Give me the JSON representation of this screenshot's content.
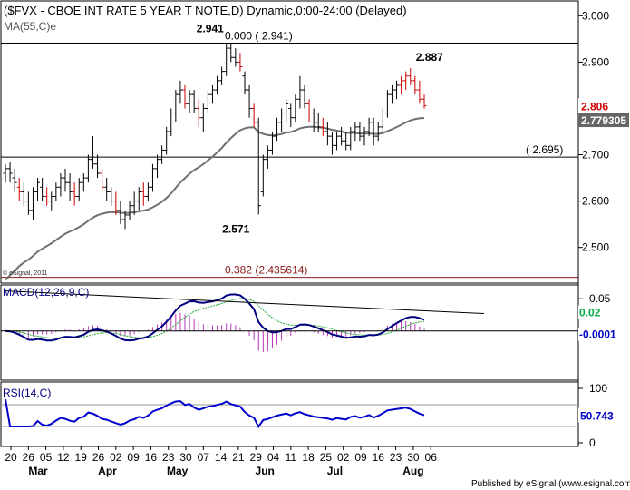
{
  "chart_data": [
    {
      "type": "ohlc",
      "title": "($FVX - CBOE INT RATE 5 YEAR T NOTE,D) Dynamic,0:00-24:00 (Delayed)",
      "indicator_label": "MA(55,C)e",
      "ylim": [
        2.425,
        3.03
      ],
      "y_ticks": [
        2.5,
        2.6,
        2.7,
        2.8,
        2.9,
        3.0
      ],
      "y_tick_labels": [
        "2.500",
        "2.600",
        "2.700",
        "2.800",
        "2.900",
        "3.000"
      ],
      "last_price": {
        "label": "2.806",
        "value": 2.806,
        "color": "#cc0000"
      },
      "ma_value": {
        "label": "2.779305",
        "value": 2.779305,
        "color": "#666666"
      },
      "horizontal_levels": [
        {
          "value": 2.941,
          "label": "0.000 ( 2.941)",
          "color": "#000000"
        },
        {
          "value": 2.695,
          "label": "( 2.695)",
          "color": "#000000"
        },
        {
          "value": 2.435614,
          "label": "0.382 (2.435614)",
          "color": "#8b1a1a"
        }
      ],
      "annotations": [
        {
          "label": "2.941",
          "value": 2.941
        },
        {
          "label": "2.571",
          "value": 2.571
        },
        {
          "label": "2.887",
          "value": 2.887
        }
      ],
      "watermark": "© eSignal, 2011",
      "ohlc": [
        [
          2.66,
          2.68,
          2.64,
          2.67
        ],
        [
          2.67,
          2.685,
          2.64,
          2.66
        ],
        [
          2.65,
          2.67,
          2.62,
          2.64
        ],
        [
          2.63,
          2.65,
          2.6,
          2.62
        ],
        [
          2.62,
          2.64,
          2.59,
          2.6
        ],
        [
          2.6,
          2.62,
          2.57,
          2.58
        ],
        [
          2.58,
          2.63,
          2.56,
          2.62
        ],
        [
          2.62,
          2.65,
          2.6,
          2.64
        ],
        [
          2.63,
          2.65,
          2.6,
          2.61
        ],
        [
          2.61,
          2.63,
          2.59,
          2.6
        ],
        [
          2.6,
          2.62,
          2.58,
          2.61
        ],
        [
          2.61,
          2.64,
          2.6,
          2.63
        ],
        [
          2.63,
          2.66,
          2.61,
          2.65
        ],
        [
          2.65,
          2.67,
          2.62,
          2.64
        ],
        [
          2.64,
          2.66,
          2.6,
          2.62
        ],
        [
          2.62,
          2.64,
          2.59,
          2.61
        ],
        [
          2.61,
          2.65,
          2.6,
          2.64
        ],
        [
          2.64,
          2.66,
          2.62,
          2.65
        ],
        [
          2.65,
          2.7,
          2.64,
          2.69
        ],
        [
          2.69,
          2.74,
          2.67,
          2.68
        ],
        [
          2.68,
          2.7,
          2.65,
          2.66
        ],
        [
          2.66,
          2.67,
          2.62,
          2.63
        ],
        [
          2.63,
          2.65,
          2.6,
          2.62
        ],
        [
          2.62,
          2.63,
          2.59,
          2.6
        ],
        [
          2.6,
          2.62,
          2.57,
          2.58
        ],
        [
          2.58,
          2.6,
          2.55,
          2.56
        ],
        [
          2.56,
          2.58,
          2.54,
          2.57
        ],
        [
          2.57,
          2.6,
          2.56,
          2.59
        ],
        [
          2.59,
          2.62,
          2.57,
          2.6
        ],
        [
          2.6,
          2.63,
          2.58,
          2.62
        ],
        [
          2.62,
          2.64,
          2.59,
          2.61
        ],
        [
          2.61,
          2.64,
          2.6,
          2.63
        ],
        [
          2.63,
          2.68,
          2.62,
          2.67
        ],
        [
          2.67,
          2.7,
          2.65,
          2.69
        ],
        [
          2.69,
          2.72,
          2.68,
          2.71
        ],
        [
          2.71,
          2.76,
          2.7,
          2.75
        ],
        [
          2.75,
          2.8,
          2.74,
          2.79
        ],
        [
          2.79,
          2.84,
          2.77,
          2.83
        ],
        [
          2.83,
          2.86,
          2.81,
          2.84
        ],
        [
          2.84,
          2.85,
          2.8,
          2.81
        ],
        [
          2.81,
          2.84,
          2.79,
          2.83
        ],
        [
          2.83,
          2.84,
          2.79,
          2.8
        ],
        [
          2.8,
          2.82,
          2.76,
          2.78
        ],
        [
          2.78,
          2.81,
          2.75,
          2.8
        ],
        [
          2.8,
          2.84,
          2.79,
          2.83
        ],
        [
          2.83,
          2.85,
          2.81,
          2.84
        ],
        [
          2.84,
          2.87,
          2.83,
          2.86
        ],
        [
          2.86,
          2.89,
          2.85,
          2.88
        ],
        [
          2.88,
          2.94,
          2.87,
          2.93
        ],
        [
          2.93,
          2.941,
          2.9,
          2.91
        ],
        [
          2.91,
          2.93,
          2.89,
          2.9
        ],
        [
          2.9,
          2.92,
          2.88,
          2.89
        ],
        [
          2.87,
          2.88,
          2.83,
          2.84
        ],
        [
          2.84,
          2.85,
          2.78,
          2.8
        ],
        [
          2.8,
          2.81,
          2.76,
          2.77
        ],
        [
          2.77,
          2.78,
          2.571,
          2.59
        ],
        [
          2.62,
          2.7,
          2.61,
          2.69
        ],
        [
          2.69,
          2.72,
          2.67,
          2.71
        ],
        [
          2.71,
          2.75,
          2.7,
          2.74
        ],
        [
          2.74,
          2.78,
          2.73,
          2.77
        ],
        [
          2.77,
          2.8,
          2.75,
          2.79
        ],
        [
          2.79,
          2.82,
          2.77,
          2.81
        ],
        [
          2.8,
          2.81,
          2.76,
          2.78
        ],
        [
          2.78,
          2.83,
          2.77,
          2.82
        ],
        [
          2.82,
          2.87,
          2.8,
          2.84
        ],
        [
          2.84,
          2.85,
          2.8,
          2.81
        ],
        [
          2.81,
          2.82,
          2.77,
          2.79
        ],
        [
          2.79,
          2.8,
          2.75,
          2.77
        ],
        [
          2.77,
          2.79,
          2.75,
          2.76
        ],
        [
          2.76,
          2.78,
          2.74,
          2.75
        ],
        [
          2.75,
          2.77,
          2.72,
          2.74
        ],
        [
          2.74,
          2.75,
          2.7,
          2.72
        ],
        [
          2.72,
          2.75,
          2.71,
          2.74
        ],
        [
          2.74,
          2.76,
          2.72,
          2.73
        ],
        [
          2.73,
          2.75,
          2.71,
          2.72
        ],
        [
          2.72,
          2.76,
          2.71,
          2.75
        ],
        [
          2.75,
          2.77,
          2.73,
          2.76
        ],
        [
          2.76,
          2.77,
          2.73,
          2.74
        ],
        [
          2.74,
          2.76,
          2.72,
          2.75
        ],
        [
          2.75,
          2.78,
          2.74,
          2.77
        ],
        [
          2.77,
          2.78,
          2.72,
          2.74
        ],
        [
          2.74,
          2.77,
          2.73,
          2.76
        ],
        [
          2.76,
          2.8,
          2.75,
          2.79
        ],
        [
          2.79,
          2.84,
          2.78,
          2.83
        ],
        [
          2.83,
          2.85,
          2.81,
          2.84
        ],
        [
          2.84,
          2.86,
          2.82,
          2.85
        ],
        [
          2.85,
          2.87,
          2.83,
          2.86
        ],
        [
          2.86,
          2.88,
          2.84,
          2.87
        ],
        [
          2.87,
          2.887,
          2.85,
          2.86
        ],
        [
          2.86,
          2.87,
          2.83,
          2.84
        ],
        [
          2.84,
          2.86,
          2.81,
          2.82
        ],
        [
          2.82,
          2.83,
          2.8,
          2.806
        ]
      ]
    },
    {
      "type": "line",
      "title": "MACD(12,26,9,C)",
      "ylim": [
        -0.075,
        0.07
      ],
      "y_ticks": [
        0.05
      ],
      "y_tick_labels": [
        "0.05"
      ],
      "zero_line": 0,
      "value_labels": [
        {
          "label": "0.02",
          "value": 0.02,
          "color": "#00aa44"
        },
        {
          "label": "-0.0001",
          "value": -0.0001,
          "color": "#0000cc"
        }
      ],
      "trendline": {
        "from": [
          0,
          0.062
        ],
        "to": [
          104,
          0.027
        ]
      }
    },
    {
      "type": "line",
      "title": "RSI(14,C)",
      "ylim": [
        -5,
        110
      ],
      "y_ticks": [
        0,
        100
      ],
      "y_tick_labels": [
        "0",
        "100"
      ],
      "guide_levels": [
        30,
        70
      ],
      "value_labels": [
        {
          "label": "50.743",
          "value": 50.743,
          "color": "#0000cc"
        }
      ]
    }
  ],
  "x_axis": {
    "day_ticks": [
      "20",
      "26",
      "05",
      "12",
      "19",
      "26",
      "02",
      "09",
      "16",
      "23",
      "30",
      "07",
      "14",
      "21",
      "29",
      "04",
      "11",
      "18",
      "25",
      "02",
      "09",
      "16",
      "23",
      "30",
      "06"
    ],
    "month_labels": [
      "Mar",
      "Apr",
      "May",
      "Jun",
      "Jul",
      "Aug"
    ]
  },
  "footer": "Published by eSignal (www.esignal.com)",
  "colors": {
    "bar": "#000000",
    "ma": "#707070",
    "macd": "#000080",
    "signal": "#22aa33",
    "hist": "#bb33bb",
    "rsi": "#0000cc",
    "level_red": "#8b1a1a"
  }
}
